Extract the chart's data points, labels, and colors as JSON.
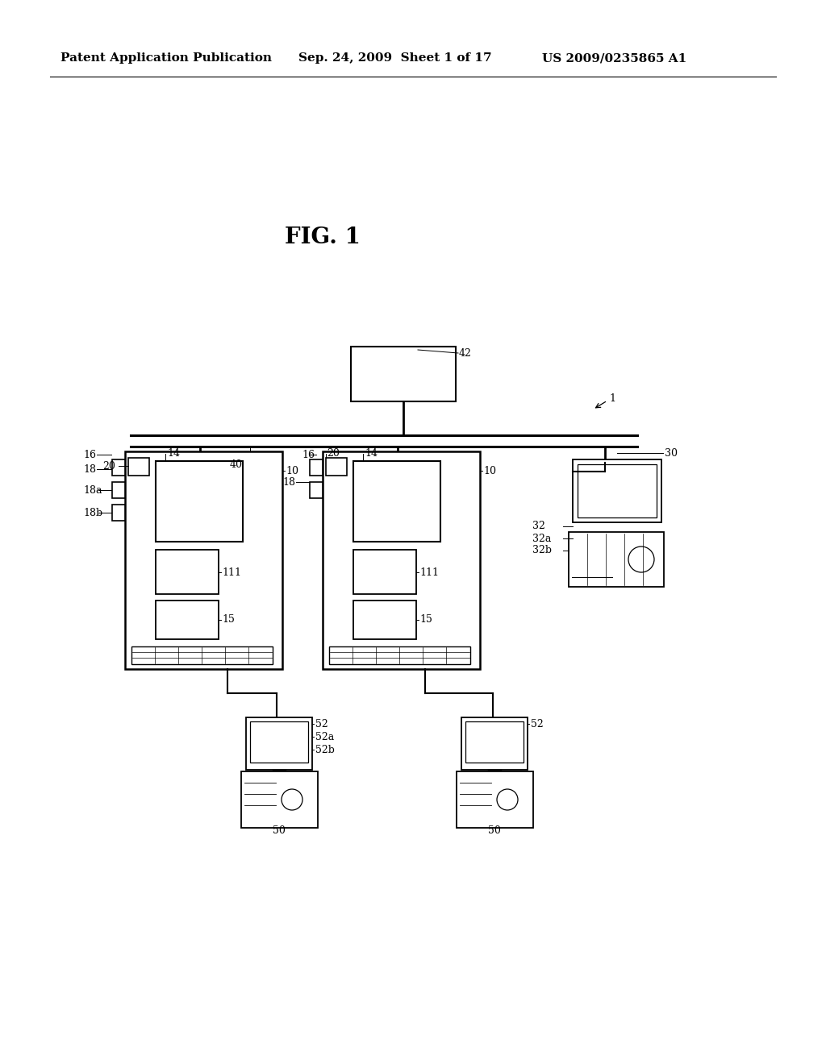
{
  "bg_color": "#ffffff",
  "header_left": "Patent Application Publication",
  "header_mid": "Sep. 24, 2009  Sheet 1 of 17",
  "header_right": "US 2009/0235865 A1",
  "fig_label": "FIG. 1"
}
